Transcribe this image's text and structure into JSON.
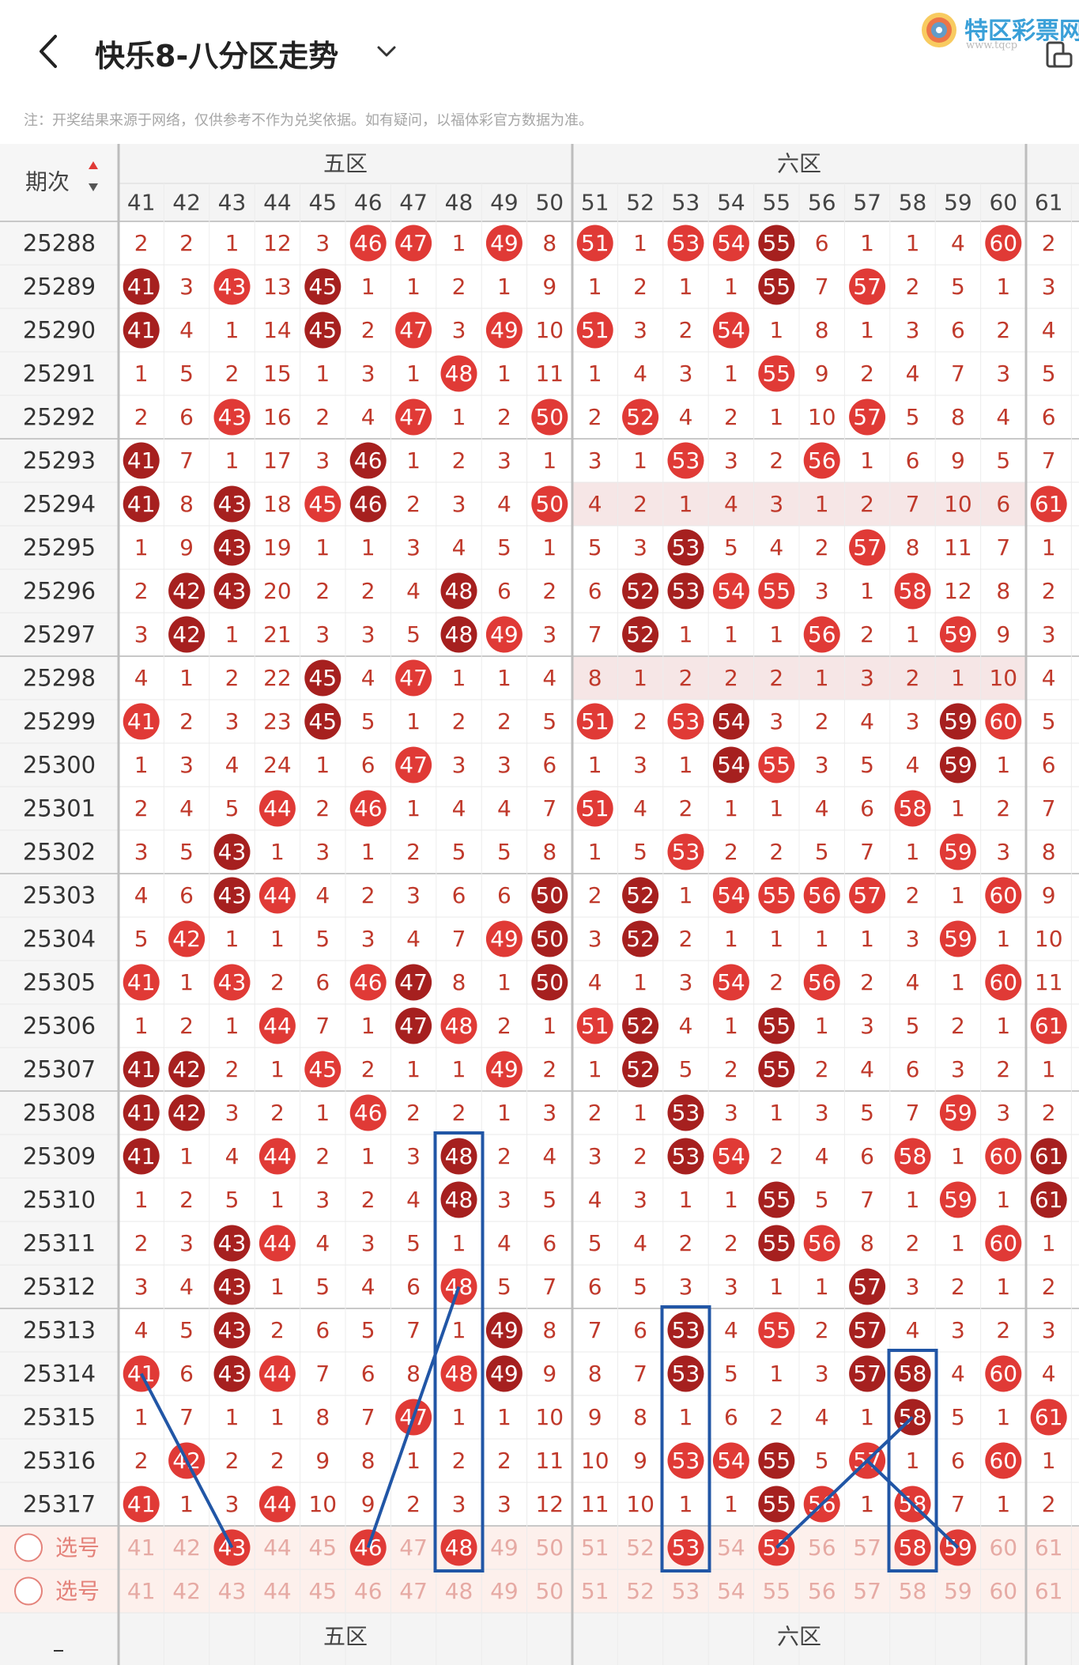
{
  "header": {
    "title": "快乐8-八分区走势",
    "logo_text": "特区彩票网",
    "logo_url": "www.tqcp",
    "note": "注：开奖结果来源于网络，仅供参考不作为兑奖依据。如有疑问，以福体彩官方数据为准。"
  },
  "table": {
    "issue_header": "期次",
    "zones": [
      {
        "name": "五区",
        "cols": [
          41,
          42,
          43,
          44,
          45,
          46,
          47,
          48,
          49,
          50
        ]
      },
      {
        "name": "六区",
        "cols": [
          51,
          52,
          53,
          54,
          55,
          56,
          57,
          58,
          59,
          60
        ]
      }
    ],
    "partial_col": 61,
    "select_label": "选号",
    "rows": [
      {
        "issue": "25288",
        "vals": [
          2,
          2,
          1,
          12,
          3,
          "46",
          "47",
          1,
          "49",
          8,
          "51",
          1,
          "53",
          "54",
          "55",
          6,
          1,
          1,
          4,
          "60",
          2
        ]
      },
      {
        "issue": "25289",
        "vals": [
          "41",
          3,
          "43",
          13,
          "45",
          1,
          1,
          2,
          1,
          9,
          1,
          2,
          1,
          1,
          "55",
          7,
          "57",
          2,
          5,
          1,
          3
        ]
      },
      {
        "issue": "25290",
        "vals": [
          "41",
          4,
          1,
          14,
          "45",
          2,
          "47",
          3,
          "49",
          10,
          "51",
          3,
          2,
          "54",
          1,
          8,
          1,
          3,
          6,
          2,
          4
        ]
      },
      {
        "issue": "25291",
        "vals": [
          1,
          5,
          2,
          15,
          1,
          3,
          1,
          "48",
          1,
          11,
          1,
          4,
          3,
          1,
          "55",
          9,
          2,
          4,
          7,
          3,
          5
        ]
      },
      {
        "issue": "25292",
        "vals": [
          2,
          6,
          "43",
          16,
          2,
          4,
          "47",
          1,
          2,
          "50",
          2,
          "52",
          4,
          2,
          1,
          10,
          "57",
          5,
          8,
          4,
          6
        ]
      },
      {
        "issue": "25293",
        "vals": [
          "41",
          7,
          1,
          17,
          3,
          "46",
          1,
          2,
          3,
          1,
          3,
          1,
          "53",
          3,
          2,
          "56",
          1,
          6,
          9,
          5,
          7
        ]
      },
      {
        "issue": "25294",
        "vals": [
          "41",
          8,
          "43",
          18,
          "45",
          "46",
          2,
          3,
          4,
          "50",
          4,
          2,
          1,
          4,
          3,
          1,
          2,
          7,
          10,
          6,
          "61"
        ]
      },
      {
        "issue": "25295",
        "vals": [
          1,
          9,
          "43",
          19,
          1,
          1,
          3,
          4,
          5,
          1,
          5,
          3,
          "53",
          5,
          4,
          2,
          "57",
          8,
          11,
          7,
          1
        ]
      },
      {
        "issue": "25296",
        "vals": [
          2,
          "42",
          "43",
          20,
          2,
          2,
          4,
          "48",
          6,
          2,
          6,
          "52",
          "53",
          "54",
          "55",
          3,
          1,
          "58",
          12,
          8,
          2
        ]
      },
      {
        "issue": "25297",
        "vals": [
          3,
          "42",
          1,
          21,
          3,
          3,
          5,
          "48",
          "49",
          3,
          7,
          "52",
          1,
          1,
          1,
          "56",
          2,
          1,
          "59",
          9,
          3
        ]
      },
      {
        "issue": "25298",
        "vals": [
          4,
          1,
          2,
          22,
          "45",
          4,
          "47",
          1,
          1,
          4,
          8,
          1,
          2,
          2,
          2,
          1,
          3,
          2,
          1,
          10,
          4
        ]
      },
      {
        "issue": "25299",
        "vals": [
          "41",
          2,
          3,
          23,
          "45",
          5,
          1,
          2,
          2,
          5,
          "51",
          2,
          "53",
          "54",
          3,
          2,
          4,
          3,
          "59",
          "60",
          5
        ]
      },
      {
        "issue": "25300",
        "vals": [
          1,
          3,
          4,
          24,
          1,
          6,
          "47",
          3,
          3,
          6,
          1,
          3,
          1,
          "54",
          "55",
          3,
          5,
          4,
          "59",
          1,
          6
        ]
      },
      {
        "issue": "25301",
        "vals": [
          2,
          4,
          5,
          "44",
          2,
          "46",
          1,
          4,
          4,
          7,
          "51",
          4,
          2,
          1,
          1,
          4,
          6,
          "58",
          1,
          2,
          7
        ]
      },
      {
        "issue": "25302",
        "vals": [
          3,
          5,
          "43",
          1,
          3,
          1,
          2,
          5,
          5,
          8,
          1,
          5,
          "53",
          2,
          2,
          5,
          7,
          1,
          "59",
          3,
          8
        ]
      },
      {
        "issue": "25303",
        "vals": [
          4,
          6,
          "43",
          "44",
          4,
          2,
          3,
          6,
          6,
          "50",
          2,
          "52",
          1,
          "54",
          "55",
          "56",
          "57",
          2,
          1,
          "60",
          9
        ]
      },
      {
        "issue": "25304",
        "vals": [
          5,
          "42",
          1,
          1,
          5,
          3,
          4,
          7,
          "49",
          "50",
          3,
          "52",
          2,
          1,
          1,
          1,
          1,
          3,
          "59",
          1,
          10
        ]
      },
      {
        "issue": "25305",
        "vals": [
          "41",
          1,
          "43",
          2,
          6,
          "46",
          "47",
          8,
          1,
          "50",
          4,
          1,
          3,
          "54",
          2,
          "56",
          2,
          4,
          1,
          "60",
          11
        ]
      },
      {
        "issue": "25306",
        "vals": [
          1,
          2,
          1,
          "44",
          7,
          1,
          "47",
          "48",
          2,
          1,
          "51",
          "52",
          4,
          1,
          "55",
          1,
          3,
          5,
          2,
          1,
          "61"
        ]
      },
      {
        "issue": "25307",
        "vals": [
          "41",
          "42",
          2,
          1,
          "45",
          2,
          1,
          1,
          "49",
          2,
          1,
          "52",
          5,
          2,
          "55",
          2,
          4,
          6,
          3,
          2,
          1
        ]
      },
      {
        "issue": "25308",
        "vals": [
          "41",
          "42",
          3,
          2,
          1,
          "46",
          2,
          2,
          1,
          3,
          2,
          1,
          "53",
          3,
          1,
          3,
          5,
          7,
          "59",
          3,
          2
        ]
      },
      {
        "issue": "25309",
        "vals": [
          "41",
          1,
          4,
          "44",
          2,
          1,
          3,
          "48",
          2,
          4,
          3,
          2,
          "53",
          "54",
          2,
          4,
          6,
          "58",
          1,
          "60",
          "61"
        ]
      },
      {
        "issue": "25310",
        "vals": [
          1,
          2,
          5,
          1,
          3,
          2,
          4,
          "48",
          3,
          5,
          4,
          3,
          1,
          1,
          "55",
          5,
          7,
          1,
          "59",
          1,
          "61"
        ]
      },
      {
        "issue": "25311",
        "vals": [
          2,
          3,
          "43",
          "44",
          4,
          3,
          5,
          1,
          4,
          6,
          5,
          4,
          2,
          2,
          "55",
          "56",
          8,
          2,
          1,
          "60",
          1
        ]
      },
      {
        "issue": "25312",
        "vals": [
          3,
          4,
          "43",
          1,
          5,
          4,
          6,
          "48",
          5,
          7,
          6,
          5,
          3,
          3,
          1,
          1,
          "57",
          3,
          2,
          1,
          2
        ]
      },
      {
        "issue": "25313",
        "vals": [
          4,
          5,
          "43",
          2,
          6,
          5,
          7,
          1,
          "49",
          8,
          7,
          6,
          "53",
          4,
          "55",
          2,
          "57",
          4,
          3,
          2,
          3
        ]
      },
      {
        "issue": "25314",
        "vals": [
          "41",
          6,
          "43",
          "44",
          7,
          6,
          8,
          "48",
          "49",
          9,
          8,
          7,
          "53",
          5,
          1,
          3,
          "57",
          "58",
          4,
          "60",
          4
        ]
      },
      {
        "issue": "25315",
        "vals": [
          1,
          7,
          1,
          1,
          8,
          7,
          "47",
          1,
          1,
          10,
          9,
          8,
          1,
          6,
          2,
          4,
          1,
          "58",
          5,
          1,
          "61"
        ]
      },
      {
        "issue": "25316",
        "vals": [
          2,
          "42",
          2,
          2,
          9,
          8,
          1,
          2,
          2,
          11,
          10,
          9,
          "53",
          "54",
          "55",
          5,
          "57",
          1,
          6,
          "60",
          1
        ]
      },
      {
        "issue": "25317",
        "vals": [
          "41",
          1,
          3,
          "44",
          10,
          9,
          2,
          3,
          3,
          12,
          11,
          10,
          1,
          1,
          "55",
          "56",
          1,
          "58",
          7,
          1,
          2
        ]
      }
    ],
    "selected_row1": [
      43,
      46,
      48,
      53,
      55,
      58,
      59
    ]
  },
  "chart_data": {
    "type": "table",
    "title": "快乐8-八分区走势",
    "columns": [
      "41",
      "42",
      "43",
      "44",
      "45",
      "46",
      "47",
      "48",
      "49",
      "50",
      "51",
      "52",
      "53",
      "54",
      "55",
      "56",
      "57",
      "58",
      "59",
      "60",
      "61"
    ],
    "first_issue": "25288",
    "last_issue": "25317",
    "selected": [
      43,
      46,
      48,
      53,
      55,
      58,
      59
    ]
  },
  "colors": {
    "ball_red": "#e03a36",
    "ball_dark": "#a6201f",
    "miss_text": "#c0392b",
    "line_blue": "#2156a6",
    "grid": "#dddddd",
    "select_bg": "#fdf0ec"
  }
}
